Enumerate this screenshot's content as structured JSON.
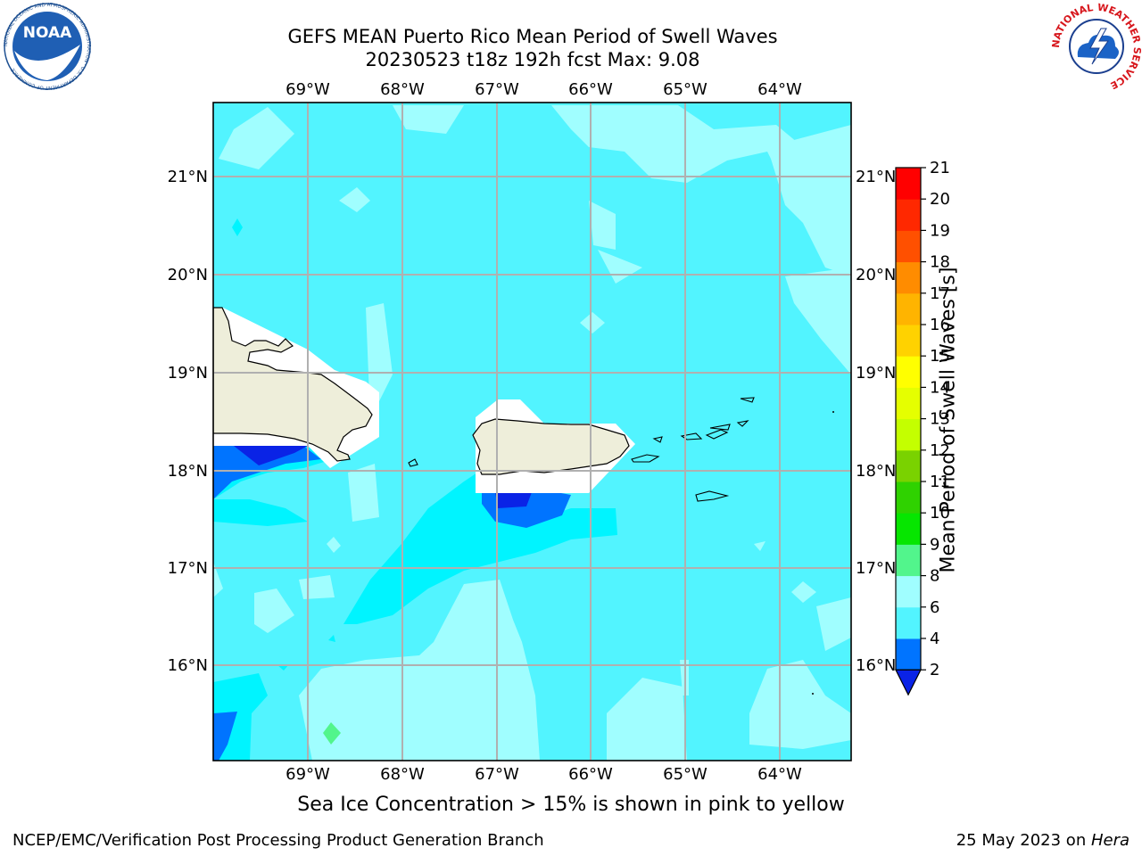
{
  "header": {
    "title_line1": "GEFS MEAN Puerto Rico Mean Period of Swell Waves",
    "title_line2": "20230523 t18z 192h fcst   Max: 9.08"
  },
  "logos": {
    "noara_text": "NOAA",
    "noaa_ring_text": "NATIONAL OCEANIC AND ATMOSPHERIC ADMINISTRATION · U.S. DEPARTMENT OF COMMERCE",
    "nws_ring_text": "NATIONAL WEATHER SERVICE"
  },
  "map": {
    "lon_labels": [
      "69°W",
      "68°W",
      "67°W",
      "66°W",
      "65°W",
      "64°W"
    ],
    "lat_labels": [
      "21°N",
      "20°N",
      "19°N",
      "18°N",
      "17°N",
      "16°N"
    ],
    "lon_range": [
      -70.0,
      -63.25
    ],
    "lat_range": [
      15.0,
      21.75
    ],
    "grid": true
  },
  "colorbar": {
    "label": "Mean Period of Swell Waves [s]",
    "ticks": [
      "2",
      "4",
      "6",
      "8",
      "9",
      "10",
      "11",
      "12",
      "13",
      "14",
      "15",
      "16",
      "17",
      "18",
      "19",
      "20",
      "21"
    ],
    "colors": [
      "#0a23e6",
      "#0074ff",
      "#00f4ff",
      "#52f4ff",
      "#a0feff",
      "#52f58c",
      "#06e600",
      "#2fd200",
      "#7ad200",
      "#c4ff00",
      "#e5ff00",
      "#ffff00",
      "#ffd200",
      "#ffb400",
      "#ff8c00",
      "#ff5000",
      "#ff2800",
      "#ff0000"
    ],
    "extend": "min"
  },
  "caption": "Sea Ice Concentration > 15% is shown in pink to yellow",
  "footer": {
    "left": "NCEP/EMC/Verification Post Processing Product Generation Branch",
    "right_prefix": "25 May 2023 on ",
    "right_host": "Hera"
  }
}
